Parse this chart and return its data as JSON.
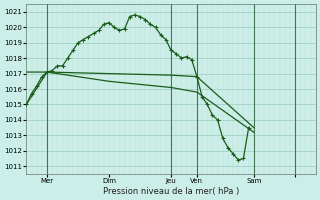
{
  "xlabel": "Pression niveau de la mer( hPa )",
  "background_color": "#cceee8",
  "grid_color_major": "#99ccbb",
  "grid_color_minor": "#bbddd4",
  "line_color": "#1a5c1a",
  "xlim": [
    0,
    56
  ],
  "ylim": [
    1010.5,
    1021.5
  ],
  "yticks": [
    1011,
    1012,
    1013,
    1014,
    1015,
    1016,
    1017,
    1018,
    1019,
    1020,
    1021
  ],
  "xtick_positions": [
    4,
    16,
    28,
    33,
    44,
    52
  ],
  "xtick_labels": [
    "Mer",
    "Dim",
    "Jeu",
    "Ven",
    "Sam",
    ""
  ],
  "vline_positions": [
    4,
    28,
    33,
    44,
    52
  ],
  "curve1_x": [
    0,
    1,
    2,
    3,
    4,
    5,
    6,
    7,
    8,
    9,
    10,
    11,
    12,
    13,
    14,
    15,
    16,
    17,
    18,
    19,
    20,
    21,
    22,
    23,
    24,
    25,
    26,
    27,
    28,
    29,
    30,
    31,
    32,
    33,
    34,
    35,
    36,
    37,
    38,
    39,
    40,
    41,
    42,
    43
  ],
  "curve1_y": [
    1015.0,
    1015.7,
    1016.2,
    1016.8,
    1017.1,
    1017.2,
    1017.5,
    1017.5,
    1018.0,
    1018.5,
    1019.0,
    1019.2,
    1019.4,
    1019.6,
    1019.8,
    1020.2,
    1020.3,
    1020.0,
    1019.8,
    1019.9,
    1020.7,
    1020.8,
    1020.7,
    1020.5,
    1020.2,
    1020.0,
    1019.5,
    1019.2,
    1018.5,
    1018.3,
    1018.0,
    1018.1,
    1017.9,
    1016.8,
    1015.5,
    1015.0,
    1014.3,
    1014.0,
    1012.8,
    1012.2,
    1011.8,
    1011.4,
    1011.5,
    1013.5
  ],
  "curve2_x": [
    0,
    4,
    16,
    28,
    33,
    44
  ],
  "curve2_y": [
    1017.1,
    1017.1,
    1017.0,
    1016.9,
    1016.8,
    1013.5
  ],
  "curve3_x": [
    0,
    4,
    16,
    28,
    33,
    44
  ],
  "curve3_y": [
    1015.0,
    1017.1,
    1016.5,
    1016.1,
    1015.8,
    1013.2
  ]
}
